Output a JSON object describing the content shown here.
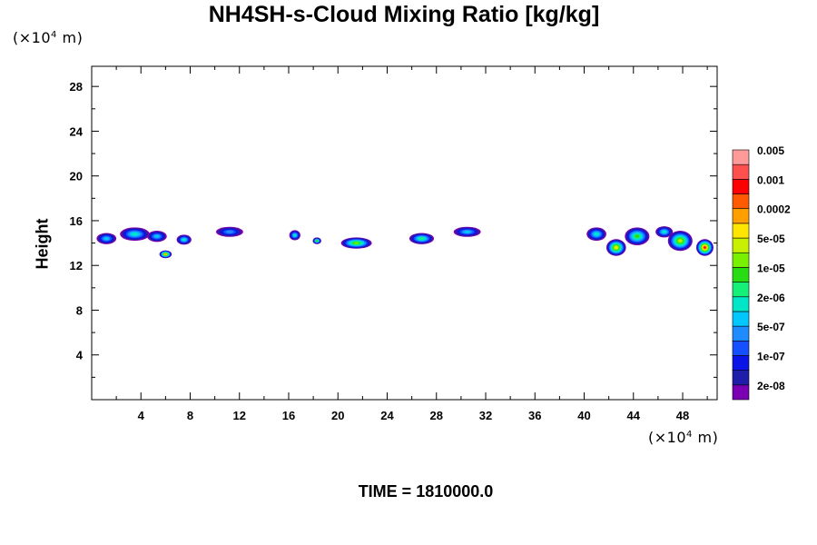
{
  "chart_data": {
    "type": "heatmap",
    "title": "NH4SH-s-Cloud Mixing Ratio [kg/kg]",
    "xlabel": "",
    "ylabel": "Height",
    "x_unit": "(×10",
    "y_unit": "(×10",
    "unit_exp": "4",
    "unit_tail": " m)",
    "xlim": [
      0,
      50.8
    ],
    "ylim": [
      0,
      29.8
    ],
    "x_ticks": [
      4,
      8,
      12,
      16,
      20,
      24,
      28,
      32,
      36,
      40,
      44,
      48
    ],
    "y_ticks": [
      4,
      8,
      12,
      16,
      20,
      24,
      28
    ],
    "colorbar": {
      "colors": [
        "#7b00b4",
        "#1e1eaa",
        "#0a14e6",
        "#1450ff",
        "#1e8cff",
        "#00c8ff",
        "#00e6c8",
        "#14f078",
        "#28dc14",
        "#78f000",
        "#c8f000",
        "#ffe600",
        "#ffa000",
        "#ff5a00",
        "#ff0000",
        "#ff5050",
        "#ff9a9a"
      ],
      "labels": [
        "2e-08",
        "1e-07",
        "5e-07",
        "2e-06",
        "1e-05",
        "5e-05",
        "0.0002",
        "0.001",
        "0.005"
      ]
    },
    "cloud_blobs": [
      {
        "x": 1.2,
        "y": 14.4,
        "w": 1.6,
        "h": 1.0,
        "level": 5
      },
      {
        "x": 3.5,
        "y": 14.8,
        "w": 2.4,
        "h": 1.2,
        "level": 6
      },
      {
        "x": 5.3,
        "y": 14.6,
        "w": 1.6,
        "h": 1.0,
        "level": 5
      },
      {
        "x": 6.0,
        "y": 13.0,
        "w": 1.0,
        "h": 0.7,
        "level": 12
      },
      {
        "x": 7.5,
        "y": 14.3,
        "w": 1.2,
        "h": 0.9,
        "level": 6
      },
      {
        "x": 11.2,
        "y": 15.0,
        "w": 2.2,
        "h": 0.9,
        "level": 4
      },
      {
        "x": 16.5,
        "y": 14.7,
        "w": 0.9,
        "h": 0.9,
        "level": 6
      },
      {
        "x": 18.3,
        "y": 14.2,
        "w": 0.7,
        "h": 0.6,
        "level": 8
      },
      {
        "x": 21.5,
        "y": 14.0,
        "w": 2.5,
        "h": 1.0,
        "level": 9
      },
      {
        "x": 26.8,
        "y": 14.4,
        "w": 2.0,
        "h": 1.0,
        "level": 7
      },
      {
        "x": 30.5,
        "y": 15.0,
        "w": 2.2,
        "h": 0.9,
        "level": 5
      },
      {
        "x": 41.0,
        "y": 14.8,
        "w": 1.6,
        "h": 1.2,
        "level": 6
      },
      {
        "x": 42.6,
        "y": 13.6,
        "w": 1.6,
        "h": 1.5,
        "level": 11
      },
      {
        "x": 44.3,
        "y": 14.6,
        "w": 2.0,
        "h": 1.6,
        "level": 8
      },
      {
        "x": 46.5,
        "y": 15.0,
        "w": 1.4,
        "h": 1.0,
        "level": 6
      },
      {
        "x": 47.8,
        "y": 14.2,
        "w": 2.0,
        "h": 1.8,
        "level": 10
      },
      {
        "x": 49.8,
        "y": 13.6,
        "w": 1.4,
        "h": 1.5,
        "level": 14
      }
    ]
  },
  "time_label": "TIME = 1810000.0"
}
